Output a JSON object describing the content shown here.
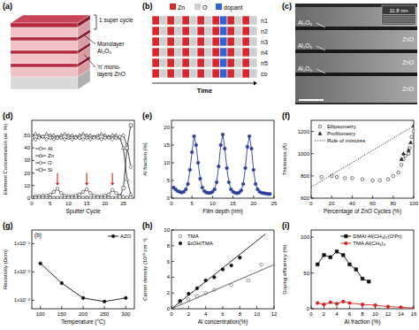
{
  "diagram_a": {
    "label": "(a)",
    "texts": [
      [
        "1 super cycle"
      ],
      [
        "Monolayer",
        "Al₂O₃"
      ],
      [
        "'n' mono-",
        "layers ZnO"
      ]
    ]
  },
  "diagram_b": {
    "label": "(b)",
    "legend": [
      {
        "name": "Zn",
        "color": "#d8262f"
      },
      {
        "name": "O",
        "color": "#cfcfcf"
      },
      {
        "name": "dopant",
        "color": "#2f63d6"
      }
    ],
    "rows": [
      "n1",
      "n2",
      "n3",
      "n4",
      "n5",
      "co"
    ],
    "x_label": "Time"
  },
  "image_c": {
    "label": "(c)",
    "left_labels": [
      "Al₂O₃",
      "Al₂O₃",
      "Al₂O₃"
    ],
    "right_labels": [
      "ZnO",
      "ZnO",
      "ZnO"
    ],
    "inset_label": "11.8 nm"
  },
  "chart_data": [
    {
      "type": "line",
      "panel": "(d)",
      "x_label": "Sputter Cycle",
      "y_label": "Element Concentration (at. %)",
      "grid": false,
      "legend": "center-left",
      "x": [
        0,
        1,
        2,
        3,
        4,
        5,
        6,
        7,
        8,
        9,
        10,
        11,
        12,
        13,
        14,
        15,
        16,
        17,
        18,
        19,
        20,
        21,
        22,
        23,
        24,
        25,
        26,
        27
      ],
      "xlim": [
        0,
        28
      ],
      "xticks": [
        0,
        5,
        10,
        15,
        20,
        25
      ],
      "ylim": [
        0,
        62
      ],
      "yticks": [
        0,
        10,
        20,
        30,
        40,
        50
      ],
      "arrows": [
        7,
        15,
        22
      ],
      "series": [
        {
          "name": "Al",
          "color": "#333333",
          "marker": "circle-open",
          "values": [
            1,
            1.5,
            1.5,
            2,
            2,
            3,
            5,
            7.5,
            4,
            2,
            1.5,
            1.5,
            2,
            3,
            5,
            7,
            4,
            2,
            1.5,
            1.5,
            2,
            3,
            6.5,
            4,
            2,
            1,
            0.5,
            0.3
          ]
        },
        {
          "name": "Zn",
          "color": "#333333",
          "marker": "triangle-open",
          "values": [
            50,
            51,
            50,
            49,
            51,
            50,
            50,
            49,
            50,
            51,
            50,
            50,
            49,
            50,
            51,
            50,
            50,
            49,
            50,
            51,
            50,
            49,
            50,
            50,
            48,
            40,
            15,
            3
          ]
        },
        {
          "name": "O",
          "color": "#333333",
          "marker": "diamond-open",
          "values": [
            48,
            47,
            48,
            49,
            47,
            48,
            47,
            48,
            48,
            47,
            48,
            47,
            48,
            48,
            47,
            48,
            47,
            48,
            48,
            47,
            48,
            48,
            47,
            48,
            49,
            50,
            42,
            25
          ]
        },
        {
          "name": "Si",
          "color": "#333333",
          "marker": "square-open",
          "values": [
            0,
            0,
            0,
            0,
            0,
            0,
            0,
            0,
            0,
            0,
            0,
            0,
            0,
            0,
            0,
            0,
            0,
            0,
            0,
            0,
            0,
            0,
            0,
            0,
            1,
            8,
            40,
            58
          ]
        }
      ]
    },
    {
      "type": "line",
      "panel": "(e)",
      "x_label": "Film depth (nm)",
      "y_label": "Al fraction (%)",
      "grid": false,
      "xlim": [
        0,
        25
      ],
      "xticks": [
        0,
        5,
        10,
        15,
        20,
        25
      ],
      "ylim": [
        0,
        22
      ],
      "yticks": [
        0,
        5,
        10,
        15,
        20
      ],
      "series": [
        {
          "color": "#2a3f9e",
          "marker": "circle",
          "x": [
            0.5,
            1,
            1.5,
            2,
            2.5,
            3,
            3.5,
            4,
            4.5,
            5,
            5.5,
            6,
            6.5,
            7,
            7.5,
            8,
            8.5,
            9,
            9.5,
            10,
            10.5,
            11,
            11.5,
            12,
            12.5,
            13,
            13.5,
            14,
            14.5,
            15,
            15.5,
            16,
            16.5,
            17,
            17.5,
            18,
            18.5,
            19,
            19.5,
            20,
            20.5,
            21,
            21.5,
            22,
            22.5,
            23,
            23.5,
            24
          ],
          "values": [
            3,
            2.5,
            2,
            1.8,
            1.6,
            1.8,
            2.5,
            4,
            8,
            13,
            17.5,
            15,
            10,
            5.5,
            3,
            2,
            1.6,
            1.5,
            1.5,
            1.8,
            2.5,
            4.5,
            9,
            15,
            18,
            14,
            8.5,
            4.5,
            2.5,
            1.8,
            1.5,
            1.4,
            1.6,
            2.2,
            4,
            8.5,
            14.5,
            17.5,
            14,
            8,
            4,
            2.5,
            1.8,
            1.5,
            1.4,
            1.3,
            1.2,
            1.2
          ]
        }
      ]
    },
    {
      "type": "scatter",
      "panel": "(f)",
      "x_label": "Percentage of ZnO Cycles (%)",
      "y_label": "Thickness (Å)",
      "grid": false,
      "legend": "top-left",
      "xlim": [
        0,
        100
      ],
      "xticks": [
        0,
        20,
        40,
        60,
        80,
        100
      ],
      "ylim": [
        600,
        1300
      ],
      "yticks": [
        600,
        800,
        1000,
        1200
      ],
      "series": [
        {
          "name": "Ellipsometry",
          "color": "#222222",
          "marker": "circle-open",
          "x": [
            10,
            20,
            25,
            33,
            40,
            50,
            60,
            67,
            75,
            80,
            85,
            88,
            90,
            92,
            95,
            96,
            98,
            100
          ],
          "values": [
            790,
            800,
            790,
            780,
            780,
            770,
            760,
            760,
            770,
            800,
            830,
            900,
            950,
            980,
            1000,
            1050,
            1150,
            1200
          ]
        },
        {
          "name": "Profilometry",
          "color": "#222222",
          "marker": "triangle",
          "x": [
            88,
            90,
            95,
            97,
            100
          ],
          "values": [
            950,
            1000,
            1030,
            1100,
            1250
          ]
        },
        {
          "name": "Rule of mixtures",
          "type": "line",
          "line_style": "dotted",
          "color": "#222222",
          "x": [
            0,
            100
          ],
          "values": [
            700,
            1250
          ]
        }
      ]
    },
    {
      "type": "line",
      "panel": "(g)",
      "subtitle": "(b)",
      "x_label": "Temperature (°C)",
      "y_label": "Resistivity (Ωcm)",
      "grid": false,
      "legend": "top-right",
      "log": "y",
      "xlim": [
        80,
        320
      ],
      "xticks": [
        100,
        150,
        200,
        250,
        300
      ],
      "ylim": [
        0.0005,
        0.3
      ],
      "yticks": [
        {
          "value": 0.001,
          "label": "1x10⁻³"
        },
        {
          "value": 0.01,
          "label": "1x10⁻²"
        },
        {
          "value": 0.1,
          "label": "1x10⁻¹"
        }
      ],
      "series": [
        {
          "name": "AZO",
          "color": "#111111",
          "marker": "circle",
          "x": [
            100,
            150,
            200,
            250,
            300
          ],
          "values": [
            0.02,
            0.004,
            0.0012,
            0.0009,
            0.0012
          ]
        }
      ]
    },
    {
      "type": "scatter",
      "panel": "(h)",
      "x_label": "Al concentration(%)",
      "y_label": "Carrier density (10²⁰ cm⁻³)",
      "grid": false,
      "legend": "top-left",
      "xlim": [
        0,
        12
      ],
      "xticks": [
        0,
        2,
        4,
        6,
        8,
        10,
        12
      ],
      "ylim": [
        0,
        10
      ],
      "yticks": [
        0,
        2,
        4,
        6,
        8,
        10
      ],
      "series": [
        {
          "name": "TMA",
          "color": "#555555",
          "marker": "circle-open",
          "x": [
            1,
            2,
            3,
            4,
            5,
            7,
            9,
            10.5
          ],
          "values": [
            0.8,
            1.2,
            1.6,
            2,
            2.4,
            3,
            3.6,
            5.6
          ]
        },
        {
          "name": "EtOH/TMA",
          "color": "#111111",
          "marker": "circle",
          "x": [
            1,
            2,
            3,
            4,
            5,
            6,
            7,
            8
          ],
          "values": [
            1,
            1.9,
            2.6,
            3.6,
            4,
            5,
            5.5,
            6.5
          ]
        },
        {
          "type": "line",
          "color": "#555555",
          "x": [
            0,
            12
          ],
          "values": [
            0,
            5.6
          ]
        },
        {
          "type": "line",
          "color": "#111111",
          "x": [
            0,
            11
          ],
          "values": [
            0,
            9.5
          ]
        }
      ]
    },
    {
      "type": "line",
      "panel": "(i)",
      "x_label": "Al fraction (%)",
      "y_label": "Doping efficiency (%)",
      "grid": false,
      "legend": "top-right",
      "xlim": [
        0,
        16
      ],
      "xticks": [
        0,
        2,
        4,
        6,
        8,
        10,
        12,
        14,
        16
      ],
      "ylim": [
        0,
        110
      ],
      "yticks": [
        0,
        50,
        100
      ],
      "series": [
        {
          "name": "DMAI Al(CH₃)₂(OⁱPr)",
          "color": "#111111",
          "marker": "square",
          "x": [
            1,
            2,
            3,
            4,
            5,
            6,
            7,
            8,
            9
          ],
          "values": [
            62,
            75,
            72,
            80,
            75,
            62,
            55,
            42,
            38
          ]
        },
        {
          "name": "TMA Al(CH₃)₃",
          "color": "#d62020",
          "marker": "circle",
          "x": [
            1,
            2,
            3,
            4,
            5,
            6,
            8,
            10,
            12,
            14,
            16
          ],
          "values": [
            8,
            6,
            9,
            7,
            10,
            8,
            6,
            5,
            3,
            2,
            1
          ]
        }
      ]
    }
  ]
}
